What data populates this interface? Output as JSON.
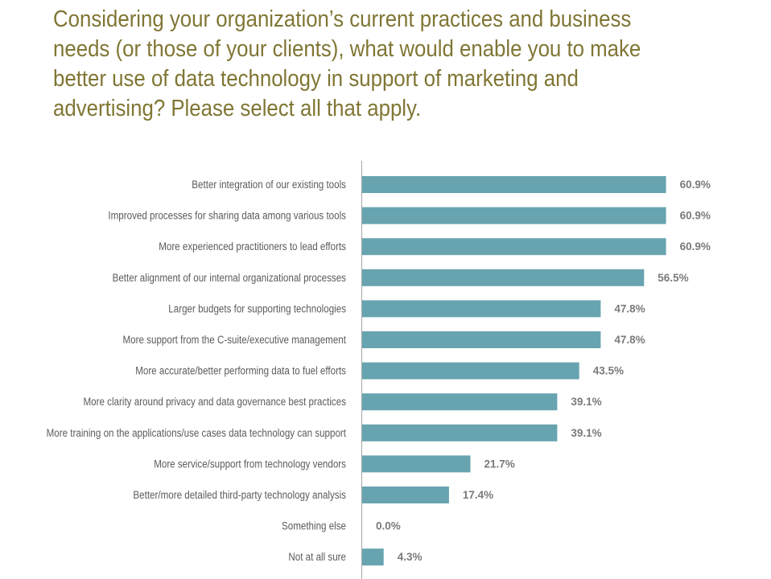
{
  "title": "Considering your organization’s current practices and business needs (or those of your clients), what would enable you to make better use of data technology in support of marketing and advertising? Please select all that apply.",
  "colors": {
    "title": "#807634",
    "bar": "#67a4b0",
    "axis": "#a6a6a6",
    "category_text": "#5b5b5b",
    "value_text": "#7a7a7a"
  },
  "chart_data": {
    "type": "bar",
    "orientation": "horizontal",
    "title": "Considering your organization’s current practices and business needs (or those of your clients), what would enable you to make better use of data technology in support of marketing and advertising? Please select all that apply.",
    "xlabel": "",
    "ylabel": "",
    "grid": false,
    "legend": "none",
    "categories": [
      "Better integration of our existing tools",
      "Improved processes for sharing data among various tools",
      "More experienced practitioners to lead efforts",
      "Better alignment of our internal organizational processes",
      "Larger budgets for supporting technologies",
      "More support from the C-suite/executive management",
      "More accurate/better performing data to fuel efforts",
      "More clarity around privacy and data governance best practices",
      "More training on the applications/use cases data technology can support",
      "More service/support from technology vendors",
      "Better/more detailed third-party technology analysis",
      "Something else",
      "Not at all sure"
    ],
    "values": [
      60.9,
      60.9,
      60.9,
      56.5,
      47.8,
      47.8,
      43.5,
      39.1,
      39.1,
      21.7,
      17.4,
      0.0,
      4.3
    ],
    "value_labels": [
      "60.9%",
      "60.9%",
      "60.9%",
      "56.5%",
      "47.8%",
      "47.8%",
      "43.5%",
      "39.1%",
      "39.1%",
      "21.7%",
      "17.4%",
      "0.0%",
      "4.3%"
    ],
    "xlim": [
      0,
      100
    ]
  }
}
